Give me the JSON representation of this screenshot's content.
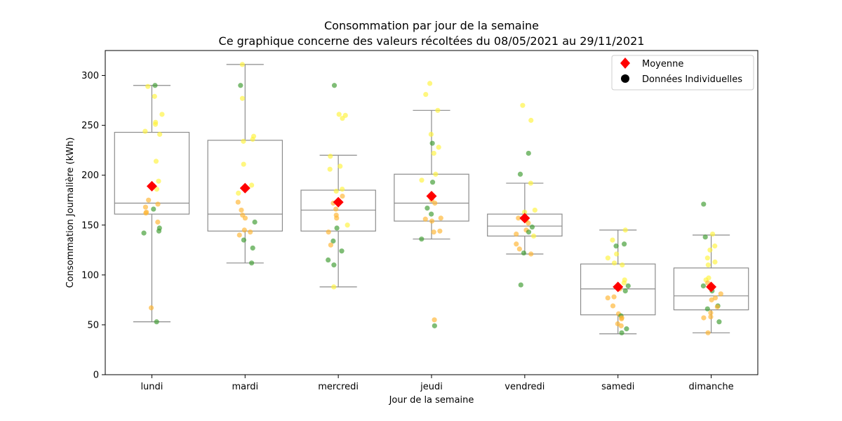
{
  "chart_data": {
    "type": "box",
    "title": "Consommation par jour de la semaine",
    "subtitle": "Ce graphique concerne des valeurs récoltées du 08/05/2021 au 29/11/2021",
    "xlabel": "Jour de la semaine",
    "ylabel": "Consommation Journalière (kWh)",
    "ylim": [
      0,
      325
    ],
    "yticks": [
      0,
      50,
      100,
      150,
      200,
      250,
      300
    ],
    "categories": [
      "lundi",
      "mardi",
      "mercredi",
      "jeudi",
      "vendredi",
      "samedi",
      "dimanche"
    ],
    "legend": {
      "placement": "top-right",
      "entries": [
        {
          "label": "Moyenne",
          "marker": "diamond",
          "color": "#ff0000"
        },
        {
          "label": "Données Individuelles",
          "marker": "circle",
          "color": "#000000"
        }
      ]
    },
    "colors": {
      "box_edge": "#8c8c8c",
      "mean": "#ff0000",
      "green": "#3a9a2c",
      "orange": "#ffb42e",
      "yellow": "#fff23a"
    },
    "boxes": [
      {
        "day": "lundi",
        "whisker_low": 53,
        "q1": 161,
        "median": 172,
        "q3": 243,
        "whisker_high": 290,
        "mean": 189
      },
      {
        "day": "mardi",
        "whisker_low": 112,
        "q1": 144,
        "median": 161,
        "q3": 235,
        "whisker_high": 311,
        "mean": 187
      },
      {
        "day": "mercredi",
        "whisker_low": 88,
        "q1": 144,
        "median": 165,
        "q3": 185,
        "whisker_high": 220,
        "mean": 173
      },
      {
        "day": "jeudi",
        "whisker_low": 136,
        "q1": 154,
        "median": 172,
        "q3": 201,
        "whisker_high": 265,
        "mean": 179
      },
      {
        "day": "vendredi",
        "whisker_low": 121,
        "q1": 139,
        "median": 149,
        "q3": 161,
        "whisker_high": 192,
        "mean": 157
      },
      {
        "day": "samedi",
        "whisker_low": 41,
        "q1": 60,
        "median": 86,
        "q3": 111,
        "whisker_high": 145,
        "mean": 88
      },
      {
        "day": "dimanche",
        "whisker_low": 42,
        "q1": 65,
        "median": 79,
        "q3": 107,
        "whisker_high": 140,
        "mean": 88
      }
    ],
    "points": {
      "lundi": [
        {
          "y": 290,
          "c": "green"
        },
        {
          "y": 289,
          "c": "yellow"
        },
        {
          "y": 279,
          "c": "yellow"
        },
        {
          "y": 261,
          "c": "yellow"
        },
        {
          "y": 253,
          "c": "yellow"
        },
        {
          "y": 251,
          "c": "yellow"
        },
        {
          "y": 244,
          "c": "yellow"
        },
        {
          "y": 241,
          "c": "yellow"
        },
        {
          "y": 214,
          "c": "yellow"
        },
        {
          "y": 194,
          "c": "yellow"
        },
        {
          "y": 186,
          "c": "yellow"
        },
        {
          "y": 175,
          "c": "orange"
        },
        {
          "y": 171,
          "c": "orange"
        },
        {
          "y": 168,
          "c": "orange"
        },
        {
          "y": 166,
          "c": "green"
        },
        {
          "y": 163,
          "c": "orange"
        },
        {
          "y": 162,
          "c": "orange"
        },
        {
          "y": 153,
          "c": "orange"
        },
        {
          "y": 147,
          "c": "green"
        },
        {
          "y": 144,
          "c": "green"
        },
        {
          "y": 142,
          "c": "green"
        },
        {
          "y": 67,
          "c": "orange"
        },
        {
          "y": 53,
          "c": "green"
        }
      ],
      "mardi": [
        {
          "y": 311,
          "c": "yellow"
        },
        {
          "y": 290,
          "c": "green"
        },
        {
          "y": 277,
          "c": "yellow"
        },
        {
          "y": 239,
          "c": "yellow"
        },
        {
          "y": 236,
          "c": "yellow"
        },
        {
          "y": 234,
          "c": "yellow"
        },
        {
          "y": 211,
          "c": "yellow"
        },
        {
          "y": 190,
          "c": "yellow"
        },
        {
          "y": 182,
          "c": "yellow"
        },
        {
          "y": 173,
          "c": "orange"
        },
        {
          "y": 165,
          "c": "orange"
        },
        {
          "y": 160,
          "c": "orange"
        },
        {
          "y": 157,
          "c": "orange"
        },
        {
          "y": 153,
          "c": "green"
        },
        {
          "y": 145,
          "c": "orange"
        },
        {
          "y": 143,
          "c": "orange"
        },
        {
          "y": 140,
          "c": "orange"
        },
        {
          "y": 135,
          "c": "green"
        },
        {
          "y": 127,
          "c": "green"
        },
        {
          "y": 112,
          "c": "green"
        }
      ],
      "mercredi": [
        {
          "y": 290,
          "c": "green"
        },
        {
          "y": 261,
          "c": "yellow"
        },
        {
          "y": 260,
          "c": "yellow"
        },
        {
          "y": 257,
          "c": "yellow"
        },
        {
          "y": 219,
          "c": "yellow"
        },
        {
          "y": 209,
          "c": "yellow"
        },
        {
          "y": 206,
          "c": "yellow"
        },
        {
          "y": 186,
          "c": "yellow"
        },
        {
          "y": 184,
          "c": "yellow"
        },
        {
          "y": 179,
          "c": "orange"
        },
        {
          "y": 172,
          "c": "orange"
        },
        {
          "y": 166,
          "c": "orange"
        },
        {
          "y": 160,
          "c": "orange"
        },
        {
          "y": 157,
          "c": "orange"
        },
        {
          "y": 150,
          "c": "yellow"
        },
        {
          "y": 147,
          "c": "green"
        },
        {
          "y": 143,
          "c": "orange"
        },
        {
          "y": 134,
          "c": "green"
        },
        {
          "y": 130,
          "c": "orange"
        },
        {
          "y": 124,
          "c": "green"
        },
        {
          "y": 115,
          "c": "green"
        },
        {
          "y": 110,
          "c": "green"
        },
        {
          "y": 88,
          "c": "yellow"
        }
      ],
      "jeudi": [
        {
          "y": 292,
          "c": "yellow"
        },
        {
          "y": 281,
          "c": "yellow"
        },
        {
          "y": 265,
          "c": "yellow"
        },
        {
          "y": 241,
          "c": "yellow"
        },
        {
          "y": 232,
          "c": "green"
        },
        {
          "y": 228,
          "c": "yellow"
        },
        {
          "y": 222,
          "c": "yellow"
        },
        {
          "y": 201,
          "c": "yellow"
        },
        {
          "y": 195,
          "c": "yellow"
        },
        {
          "y": 193,
          "c": "green"
        },
        {
          "y": 178,
          "c": "orange"
        },
        {
          "y": 175,
          "c": "orange"
        },
        {
          "y": 172,
          "c": "orange"
        },
        {
          "y": 167,
          "c": "green"
        },
        {
          "y": 161,
          "c": "green"
        },
        {
          "y": 157,
          "c": "orange"
        },
        {
          "y": 156,
          "c": "orange"
        },
        {
          "y": 154,
          "c": "orange"
        },
        {
          "y": 144,
          "c": "orange"
        },
        {
          "y": 143,
          "c": "orange"
        },
        {
          "y": 136,
          "c": "green"
        },
        {
          "y": 55,
          "c": "orange"
        },
        {
          "y": 49,
          "c": "green"
        }
      ],
      "vendredi": [
        {
          "y": 270,
          "c": "yellow"
        },
        {
          "y": 255,
          "c": "yellow"
        },
        {
          "y": 222,
          "c": "green"
        },
        {
          "y": 201,
          "c": "green"
        },
        {
          "y": 192,
          "c": "yellow"
        },
        {
          "y": 165,
          "c": "yellow"
        },
        {
          "y": 163,
          "c": "yellow"
        },
        {
          "y": 157,
          "c": "orange"
        },
        {
          "y": 155,
          "c": "orange"
        },
        {
          "y": 152,
          "c": "orange"
        },
        {
          "y": 148,
          "c": "green"
        },
        {
          "y": 145,
          "c": "orange"
        },
        {
          "y": 143,
          "c": "green"
        },
        {
          "y": 141,
          "c": "orange"
        },
        {
          "y": 139,
          "c": "yellow"
        },
        {
          "y": 131,
          "c": "orange"
        },
        {
          "y": 126,
          "c": "orange"
        },
        {
          "y": 122,
          "c": "green"
        },
        {
          "y": 121,
          "c": "orange"
        },
        {
          "y": 90,
          "c": "green"
        }
      ],
      "samedi": [
        {
          "y": 145,
          "c": "yellow"
        },
        {
          "y": 135,
          "c": "yellow"
        },
        {
          "y": 131,
          "c": "green"
        },
        {
          "y": 129,
          "c": "green"
        },
        {
          "y": 121,
          "c": "yellow"
        },
        {
          "y": 117,
          "c": "yellow"
        },
        {
          "y": 112,
          "c": "yellow"
        },
        {
          "y": 110,
          "c": "yellow"
        },
        {
          "y": 95,
          "c": "yellow"
        },
        {
          "y": 92,
          "c": "yellow"
        },
        {
          "y": 89,
          "c": "green"
        },
        {
          "y": 86,
          "c": "orange"
        },
        {
          "y": 84,
          "c": "green"
        },
        {
          "y": 78,
          "c": "orange"
        },
        {
          "y": 77,
          "c": "orange"
        },
        {
          "y": 69,
          "c": "orange"
        },
        {
          "y": 61,
          "c": "orange"
        },
        {
          "y": 59,
          "c": "green"
        },
        {
          "y": 57,
          "c": "orange"
        },
        {
          "y": 56,
          "c": "orange"
        },
        {
          "y": 51,
          "c": "orange"
        },
        {
          "y": 49,
          "c": "orange"
        },
        {
          "y": 46,
          "c": "green"
        },
        {
          "y": 42,
          "c": "green"
        }
      ],
      "dimanche": [
        {
          "y": 171,
          "c": "green"
        },
        {
          "y": 141,
          "c": "yellow"
        },
        {
          "y": 138,
          "c": "green"
        },
        {
          "y": 129,
          "c": "yellow"
        },
        {
          "y": 125,
          "c": "yellow"
        },
        {
          "y": 117,
          "c": "yellow"
        },
        {
          "y": 113,
          "c": "yellow"
        },
        {
          "y": 110,
          "c": "yellow"
        },
        {
          "y": 97,
          "c": "yellow"
        },
        {
          "y": 95,
          "c": "yellow"
        },
        {
          "y": 92,
          "c": "orange"
        },
        {
          "y": 89,
          "c": "green"
        },
        {
          "y": 84,
          "c": "green"
        },
        {
          "y": 81,
          "c": "orange"
        },
        {
          "y": 77,
          "c": "orange"
        },
        {
          "y": 75,
          "c": "orange"
        },
        {
          "y": 69,
          "c": "green"
        },
        {
          "y": 68,
          "c": "orange"
        },
        {
          "y": 66,
          "c": "green"
        },
        {
          "y": 62,
          "c": "orange"
        },
        {
          "y": 58,
          "c": "orange"
        },
        {
          "y": 57,
          "c": "orange"
        },
        {
          "y": 53,
          "c": "green"
        },
        {
          "y": 42,
          "c": "orange"
        }
      ]
    }
  }
}
